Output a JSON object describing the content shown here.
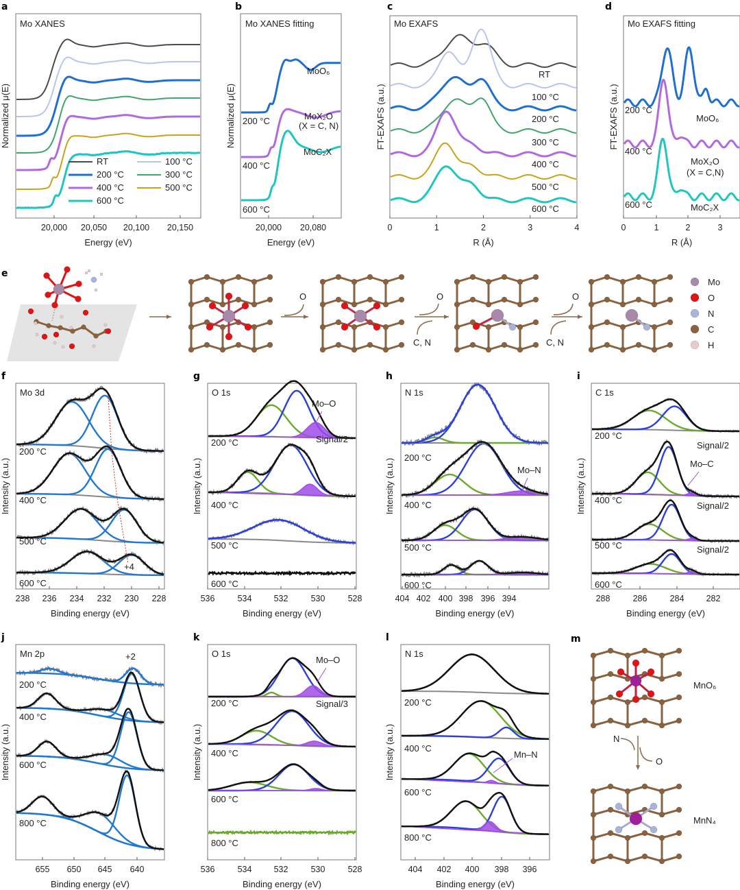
{
  "colors": {
    "rt": "#4a4a4a",
    "t100": "#b8c4f0",
    "t200": "#1f6fd1",
    "t300": "#3fa56b",
    "t400": "#b069e0",
    "t500": "#c9a21a",
    "t600": "#1fc6c0",
    "raw": "#808080",
    "fit": "#111111",
    "comp_blue": "#1f78d1",
    "comp_navy": "#2a3fdc",
    "comp_green": "#6aab2a",
    "purple": "#a04ce6",
    "bg": "#888888",
    "atom_mo": "#a889a9",
    "atom_o": "#e01414",
    "atom_n": "#a8b4d8",
    "atom_c": "#8a6240",
    "atom_h": "#e8cccc",
    "atom_mn": "#a0209a",
    "arrow": "#8a6a4a"
  },
  "panels": {
    "a": {
      "label": "a",
      "title": "Mo XANES",
      "xlabel": "Energy (eV)",
      "ylabel": "Normalized μ(E)",
      "xticks": [
        "20,000",
        "20,050",
        "20,100",
        "20,150"
      ],
      "legend": [
        "RT",
        "100 °C",
        "200 °C",
        "300 °C",
        "400 °C",
        "500 °C",
        "600 °C"
      ]
    },
    "b": {
      "label": "b",
      "title": "Mo XANES fitting",
      "xlabel": "Energy (eV)",
      "ylabel": "Normalized μ(E)",
      "xticks": [
        "20,000",
        "20,080"
      ],
      "curve_labels": [
        "MoO₆",
        "MoX₂O",
        "(X = C, N)",
        "MoC₂X"
      ],
      "temps": [
        "200 °C",
        "400 °C",
        "600 °C"
      ]
    },
    "c": {
      "label": "c",
      "title": "Mo EXAFS",
      "xlabel": "R (Å)",
      "ylabel": "FT-EXAFS (a.u.)",
      "xticks": [
        "0",
        "1",
        "2",
        "3",
        "4"
      ],
      "temps": [
        "RT",
        "100 °C",
        "200 °C",
        "300 °C",
        "400 °C",
        "500 °C",
        "600 °C"
      ]
    },
    "d": {
      "label": "d",
      "title": "Mo EXAFS fitting",
      "xlabel": "R (Å)",
      "ylabel": "FT-EXAFS (a.u.)",
      "xticks": [
        "0",
        "1",
        "2",
        "3"
      ],
      "temps": [
        "200 °C",
        "400 °C",
        "600 °C"
      ],
      "curve_labels": [
        "MoO₆",
        "MoX₂O",
        "(X = C,N)",
        "MoC₂X"
      ]
    },
    "e": {
      "label": "e",
      "steps": [
        "O",
        "O",
        "C, N",
        "O",
        "C, N"
      ],
      "legend": [
        "Mo",
        "O",
        "N",
        "C",
        "H"
      ]
    },
    "f": {
      "label": "f",
      "title": "Mo 3d",
      "xlabel": "Binding energy (eV)",
      "ylabel": "Intensity (a.u.)",
      "xticks": [
        "238",
        "236",
        "234",
        "232",
        "230",
        "228"
      ],
      "temps": [
        "200 °C",
        "400 °C",
        "500 °C",
        "600 °C"
      ],
      "annotation": "+4"
    },
    "g": {
      "label": "g",
      "title": "O 1s",
      "xlabel": "Binding energy (eV)",
      "ylabel": "Intensity (a.u.)",
      "xticks": [
        "536",
        "534",
        "532",
        "530",
        "528"
      ],
      "temps": [
        "200 °C",
        "400 °C",
        "500 °C",
        "600 °C"
      ],
      "annotation": "Mo–O",
      "scale_note": "Signal/2"
    },
    "h": {
      "label": "h",
      "title": "N 1s",
      "xlabel": "Binding energy (eV)",
      "ylabel": "Intensity (a.u.)",
      "xticks": [
        "404",
        "402",
        "400",
        "398",
        "396",
        "394"
      ],
      "temps": [
        "200 °C",
        "400 °C",
        "500 °C",
        "600 °C"
      ],
      "annotation": "Mo–N"
    },
    "i": {
      "label": "i",
      "title": "C 1s",
      "xlabel": "Binding energy (eV)",
      "ylabel": "Intensity (a.u.)",
      "xticks": [
        "288",
        "286",
        "284",
        "282"
      ],
      "temps": [
        "200 °C",
        "400 °C",
        "500 °C",
        "600 °C"
      ],
      "annotation": "Mo–C",
      "scale_notes": [
        "Signal/2",
        "Signal/2",
        "Signal/2"
      ]
    },
    "j": {
      "label": "j",
      "title": "Mn 2p",
      "xlabel": "Binding energy (eV)",
      "ylabel": "Intensity (a.u.)",
      "xticks": [
        "655",
        "650",
        "645",
        "640"
      ],
      "temps": [
        "200 °C",
        "400 °C",
        "600 °C",
        "800 °C"
      ],
      "annotation": "+2"
    },
    "k": {
      "label": "k",
      "title": "O 1s",
      "xlabel": "Binding energy (eV)",
      "ylabel": "Intensity (a.u.)",
      "xticks": [
        "536",
        "534",
        "532",
        "530",
        "528"
      ],
      "temps": [
        "200 °C",
        "400 °C",
        "600 °C",
        "800 °C"
      ],
      "annotation": "Mo–O",
      "scale_note": "Signal/3"
    },
    "l": {
      "label": "l",
      "title": "N 1s",
      "xlabel": "Binding energy (eV)",
      "ylabel": "Intensity (a.u.)",
      "xticks": [
        "404",
        "402",
        "400",
        "398",
        "396"
      ],
      "temps": [
        "200 °C",
        "400 °C",
        "600 °C",
        "800 °C"
      ],
      "annotation": "Mn–N"
    },
    "m": {
      "label": "m",
      "labels": [
        "MnO₆",
        "MnN₄"
      ],
      "step_in": "N",
      "step_out": "O"
    }
  },
  "chart_data": [
    {
      "panel": "a",
      "type": "line",
      "title": "Mo XANES",
      "xlabel": "Energy (eV)",
      "ylabel": "Normalized μ(E)",
      "xlim": [
        19955,
        20170
      ],
      "series": [
        {
          "name": "RT"
        },
        {
          "name": "100 °C"
        },
        {
          "name": "200 °C"
        },
        {
          "name": "300 °C"
        },
        {
          "name": "400 °C"
        },
        {
          "name": "500 °C"
        },
        {
          "name": "600 °C"
        }
      ],
      "edge_eV": 20005,
      "white_line_eV": 20030
    },
    {
      "panel": "b",
      "type": "line",
      "title": "Mo XANES fitting",
      "xlabel": "Energy (eV)",
      "xlim": [
        19970,
        20110
      ],
      "series": [
        {
          "name": "200 °C",
          "label": "MoO6"
        },
        {
          "name": "400 °C",
          "label": "MoX2O (X = C, N)"
        },
        {
          "name": "600 °C",
          "label": "MoC2X"
        }
      ]
    },
    {
      "panel": "c",
      "type": "line",
      "title": "Mo EXAFS",
      "xlabel": "R (Å)",
      "ylabel": "FT-EXAFS (a.u.)",
      "xlim": [
        0,
        4
      ],
      "series": [
        {
          "name": "RT",
          "peaks_R": [
            1.45,
            2.05
          ]
        },
        {
          "name": "100 °C",
          "peaks_R": [
            1.25,
            1.95
          ]
        },
        {
          "name": "200 °C",
          "peaks_R": [
            1.35,
            1.97
          ]
        },
        {
          "name": "300 °C",
          "peaks_R": [
            1.38,
            1.97
          ]
        },
        {
          "name": "400 °C",
          "peaks_R": [
            1.2
          ]
        },
        {
          "name": "500 °C",
          "peaks_R": [
            1.18
          ]
        },
        {
          "name": "600 °C",
          "peaks_R": [
            1.2
          ]
        }
      ]
    },
    {
      "panel": "d",
      "type": "line",
      "title": "Mo EXAFS fitting",
      "xlabel": "R (Å)",
      "ylabel": "FT-EXAFS (a.u.)",
      "xlim": [
        0,
        3.5
      ],
      "series": [
        {
          "name": "200 °C",
          "label": "MoO6",
          "peaks_R": [
            1.3,
            1.98
          ]
        },
        {
          "name": "400 °C",
          "label": "MoX2O",
          "peaks_R": [
            1.2
          ]
        },
        {
          "name": "600 °C",
          "label": "MoC2X",
          "peaks_R": [
            1.18
          ]
        }
      ]
    },
    {
      "panel": "f",
      "type": "line",
      "title": "Mo 3d",
      "xlabel": "Binding energy (eV)",
      "xlim": [
        238,
        227
      ],
      "reversed_x": true,
      "series": [
        {
          "name": "200 °C",
          "peaks_eV": [
            234.0,
            231.1
          ]
        },
        {
          "name": "400 °C",
          "peaks_eV": [
            234.0,
            231.0
          ]
        },
        {
          "name": "500 °C",
          "peaks_eV": [
            233.3,
            230.3
          ]
        },
        {
          "name": "600 °C",
          "peaks_eV": [
            232.6,
            229.7
          ]
        }
      ]
    },
    {
      "panel": "g",
      "type": "line",
      "title": "O 1s",
      "xlabel": "Binding energy (eV)",
      "xlim": [
        536,
        528
      ],
      "reversed_x": true,
      "series": [
        {
          "name": "200 °C",
          "peaks_eV": [
            532.8,
            531.5,
            530.4
          ]
        },
        {
          "name": "400 °C",
          "peaks_eV": [
            533.8,
            531.6,
            530.5
          ]
        },
        {
          "name": "500 °C",
          "peaks_eV": [
            532.0
          ]
        },
        {
          "name": "600 °C",
          "peaks_eV": []
        }
      ]
    },
    {
      "panel": "h",
      "type": "line",
      "title": "N 1s",
      "xlabel": "Binding energy (eV)",
      "xlim": [
        404,
        393
      ],
      "reversed_x": true,
      "series": [
        {
          "name": "200 °C",
          "peaks_eV": [
            400.2,
            398.8
          ]
        },
        {
          "name": "400 °C",
          "peaks_eV": [
            400.5,
            398.8,
            395.5
          ]
        },
        {
          "name": "500 °C",
          "peaks_eV": [
            400.7,
            398.6,
            395.5
          ]
        },
        {
          "name": "600 °C",
          "peaks_eV": [
            400.6,
            398.4,
            395.5
          ]
        }
      ]
    },
    {
      "panel": "i",
      "type": "line",
      "title": "C 1s",
      "xlabel": "Binding energy (eV)",
      "xlim": [
        289,
        281
      ],
      "reversed_x": true,
      "series": [
        {
          "name": "200 °C",
          "peaks_eV": [
            285.8,
            284.5
          ]
        },
        {
          "name": "400 °C",
          "peaks_eV": [
            285.9,
            284.7,
            283.7
          ]
        },
        {
          "name": "500 °C",
          "peaks_eV": [
            285.9,
            284.7,
            283.7
          ]
        },
        {
          "name": "600 °C",
          "peaks_eV": [
            285.7,
            284.7,
            283.7
          ]
        }
      ]
    },
    {
      "panel": "j",
      "type": "line",
      "title": "Mn 2p",
      "xlabel": "Binding energy (eV)",
      "xlim": [
        658,
        636
      ],
      "reversed_x": true,
      "series": [
        {
          "name": "200 °C",
          "peaks_eV": [
            653.0,
            641.2
          ]
        },
        {
          "name": "400 °C",
          "peaks_eV": [
            653.3,
            644.5,
            641.2
          ]
        },
        {
          "name": "600 °C",
          "peaks_eV": [
            653.6,
            644.8,
            641.6
          ]
        },
        {
          "name": "800 °C",
          "peaks_eV": [
            654.0,
            645.2,
            641.8
          ]
        }
      ]
    },
    {
      "panel": "k",
      "type": "line",
      "title": "O 1s",
      "xlabel": "Binding energy (eV)",
      "xlim": [
        536,
        528
      ],
      "reversed_x": true,
      "series": [
        {
          "name": "200 °C",
          "peaks_eV": [
            532.5,
            531.3,
            530.4
          ]
        },
        {
          "name": "400 °C",
          "peaks_eV": [
            533.1,
            531.3,
            530.4
          ]
        },
        {
          "name": "600 °C",
          "peaks_eV": [
            533.5,
            531.3,
            530.2
          ]
        },
        {
          "name": "800 °C",
          "peaks_eV": []
        }
      ]
    },
    {
      "panel": "l",
      "type": "line",
      "title": "N 1s",
      "xlabel": "Binding energy (eV)",
      "xlim": [
        405,
        395
      ],
      "reversed_x": true,
      "series": [
        {
          "name": "200 °C",
          "peaks_eV": [
            399.8
          ]
        },
        {
          "name": "400 °C",
          "peaks_eV": [
            399.5,
            398.0
          ]
        },
        {
          "name": "600 °C",
          "peaks_eV": [
            400.4,
            398.5,
            398.9
          ]
        },
        {
          "name": "800 °C",
          "peaks_eV": [
            400.6,
            398.3,
            399.0
          ]
        }
      ]
    }
  ]
}
